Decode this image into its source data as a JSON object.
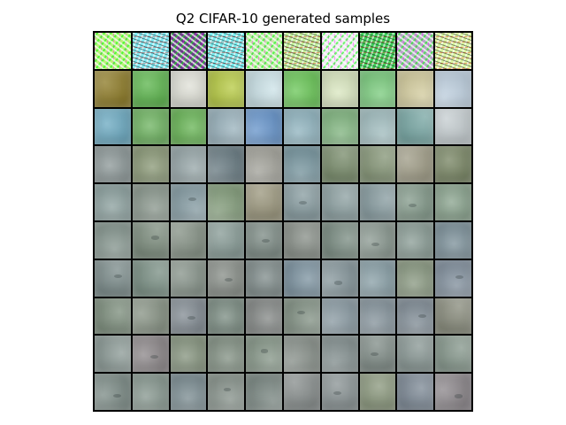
{
  "title": "Q2 CIFAR-10 generated samples",
  "colors": {
    "rows": [
      [
        "#b9f07a",
        "#7fe9f2",
        "#6b3d8a",
        "#78eef0",
        "#c3e7a8",
        "#c2f09a",
        "#f2e6f4",
        "#3fd15a",
        "#b8a6c8",
        "#d9f5a0"
      ],
      [
        "#8f7d2b",
        "#5fb650",
        "#e0e1d8",
        "#b8cb48",
        "#cfe5ea",
        "#6ec85c",
        "#dbe8c2",
        "#7fce82",
        "#d6cfa2",
        "#c2d3e2"
      ],
      [
        "#6eabc2",
        "#71b564",
        "#6bb659",
        "#9db5bf",
        "#6b98cd",
        "#94b7c2",
        "#86b985",
        "#a7c2c4",
        "#7ba9a6",
        "#c7cfd2"
      ],
      [
        "#8f9a9a",
        "#8d9b7a",
        "#9aa9ab",
        "#6d7f86",
        "#a7a79f",
        "#7c9aa3",
        "#7b8e6e",
        "#88987a",
        "#a29f8a",
        "#7a8766"
      ],
      [
        "#8fa3a1",
        "#8e9b91",
        "#8aa0a7",
        "#87a07f",
        "#9d9980",
        "#8a9ea2",
        "#8fa2a3",
        "#8b9fa3",
        "#869c8d",
        "#8ca590"
      ],
      [
        "#8a9a93",
        "#7f8f80",
        "#889488",
        "#8a9d98",
        "#7f8d87",
        "#8a918a",
        "#7d8f85",
        "#8e9c94",
        "#8d9f98",
        "#7f939c"
      ],
      [
        "#7d8d8c",
        "#7d9287",
        "#8a968d",
        "#8a908a",
        "#828e8d",
        "#7f95a2",
        "#8a9a9f",
        "#8ca2a9",
        "#8d9c85",
        "#8593a0"
      ],
      [
        "#7f907f",
        "#8b9688",
        "#858e95",
        "#7e8f85",
        "#878b89",
        "#869588",
        "#8e9ea6",
        "#8a98a0",
        "#86929b",
        "#8a8d7e"
      ],
      [
        "#8f9d99",
        "#8f8a8c",
        "#889681",
        "#869487",
        "#8a9a8c",
        "#8d958f",
        "#889494",
        "#838f8a",
        "#8b9996",
        "#88998e"
      ],
      [
        "#808f8a",
        "#8a9a92",
        "#7f9095",
        "#8c9790",
        "#7f8c87",
        "#8a908f",
        "#8c9596",
        "#8d9a80",
        "#7f8b97",
        "#8f8a8e"
      ]
    ]
  }
}
